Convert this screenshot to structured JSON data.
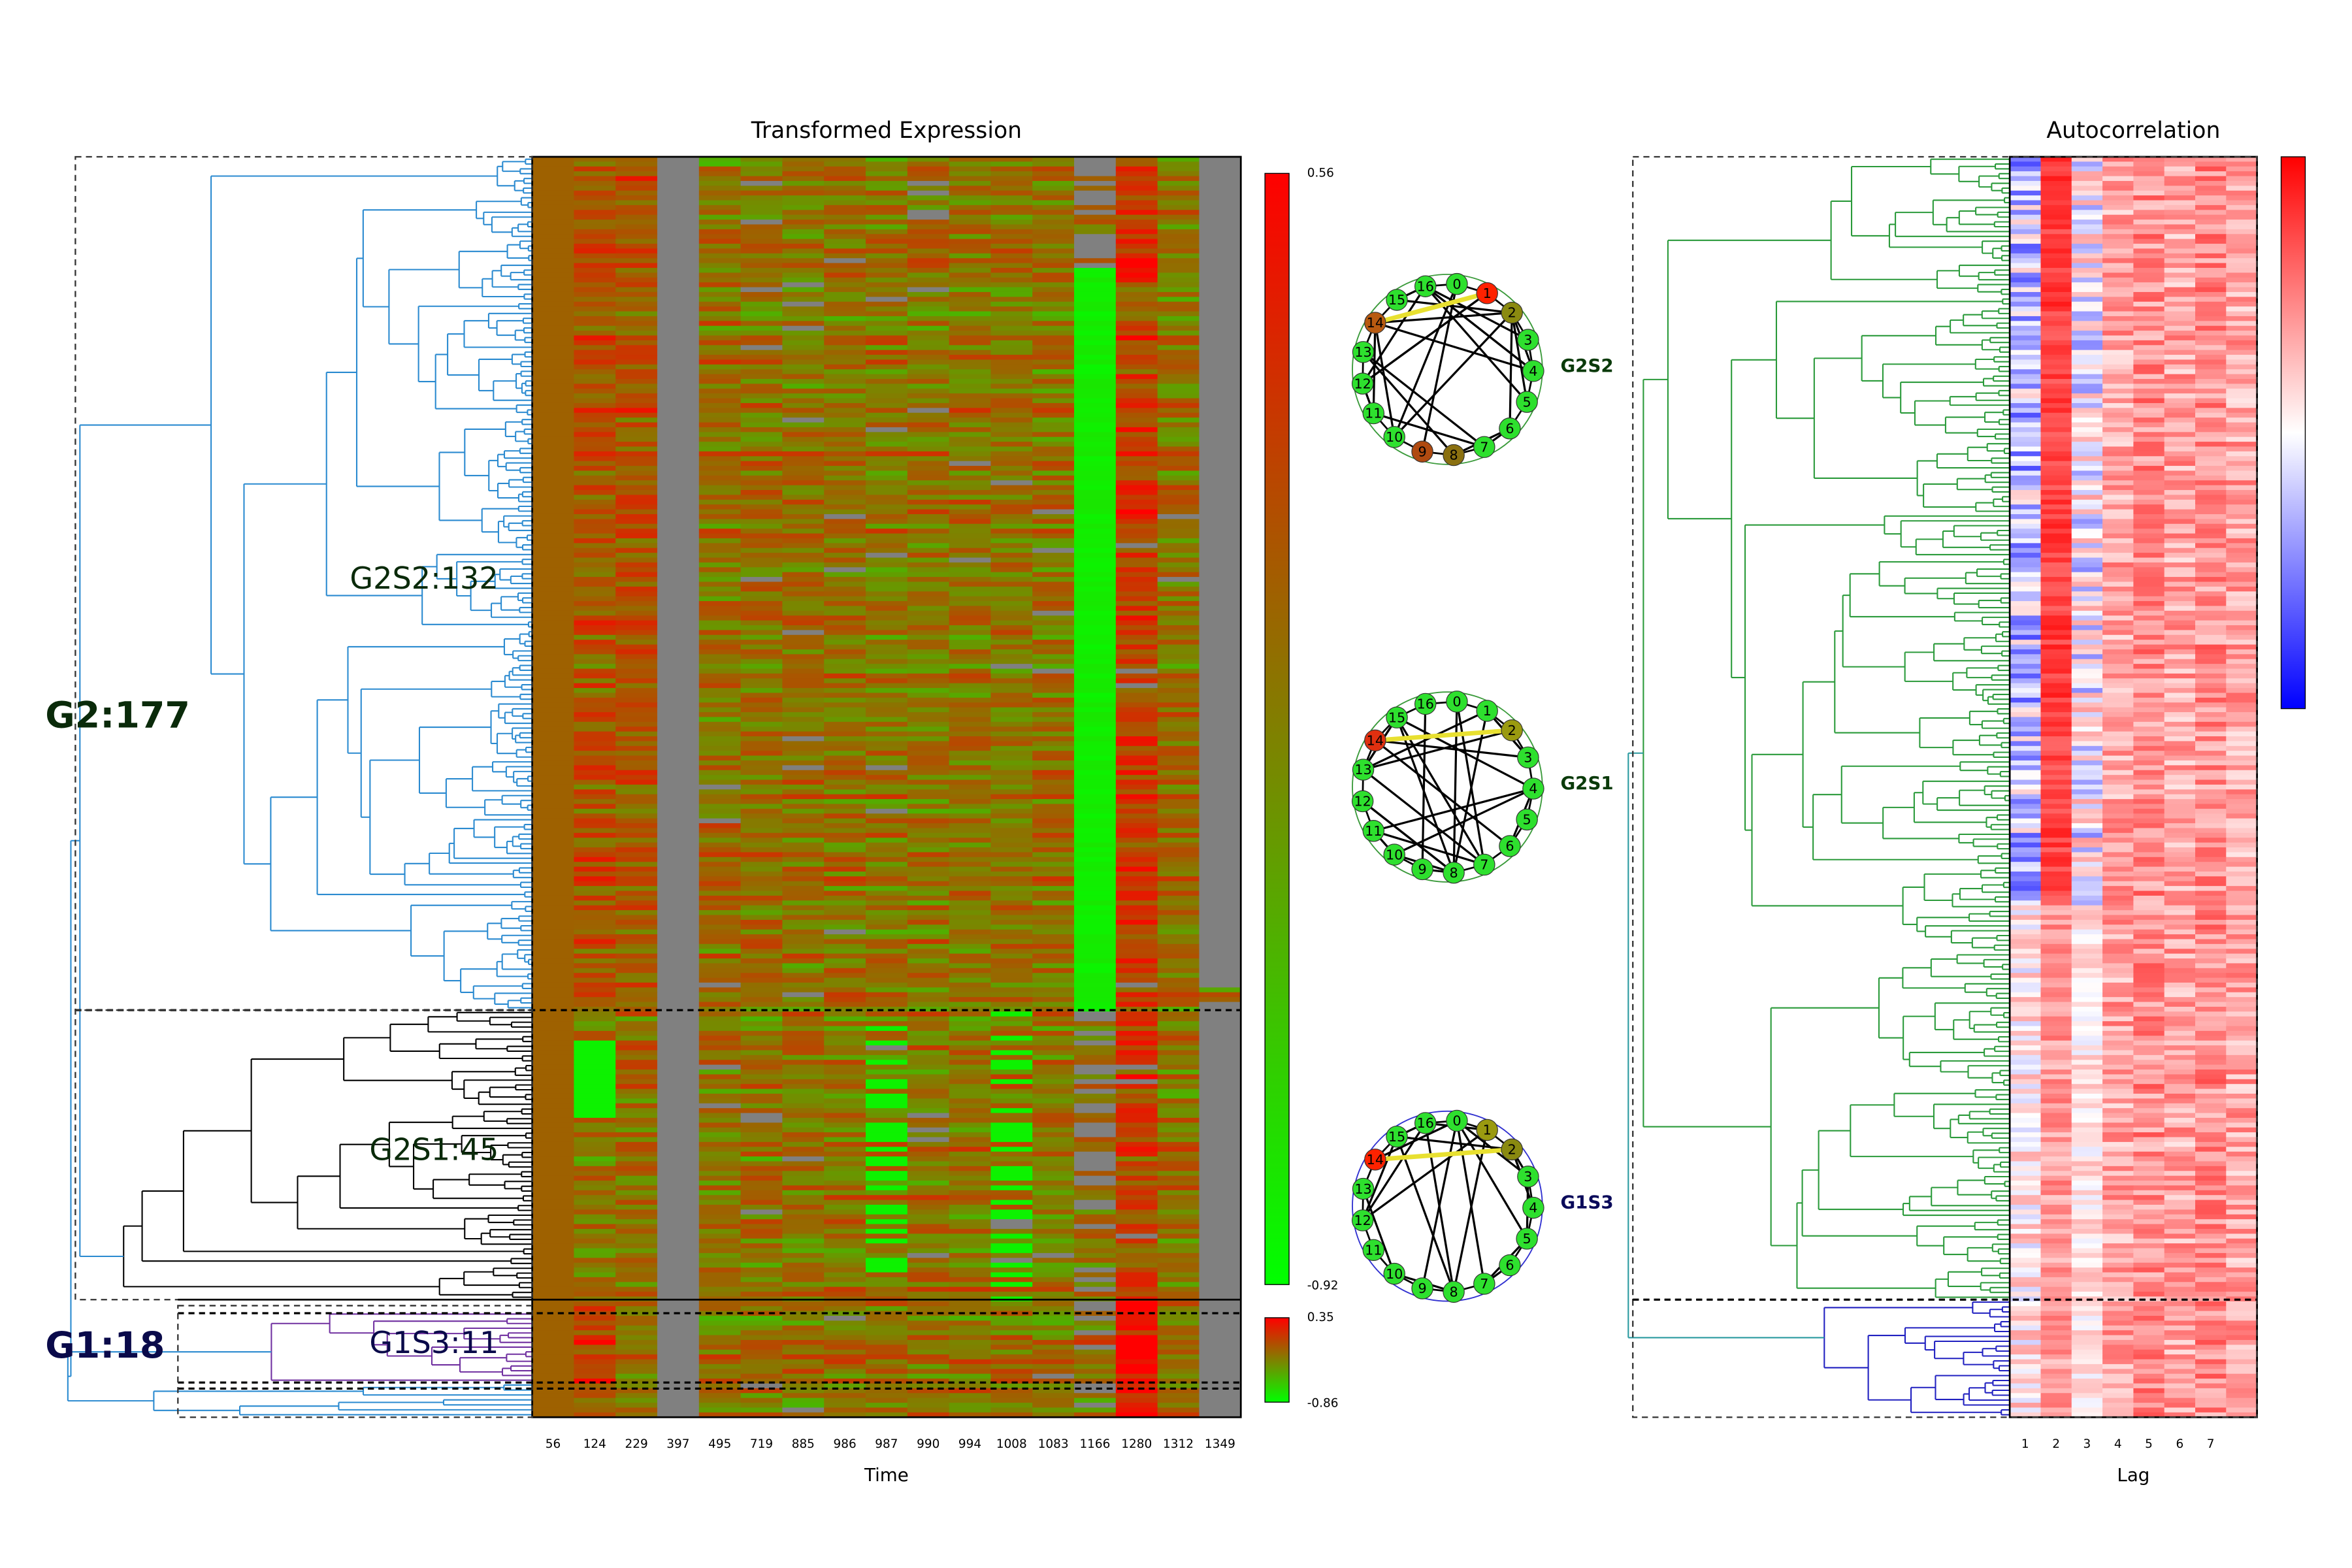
{
  "expression": {
    "title": "Transformed Expression",
    "x_label": "Time",
    "time_points": [
      56,
      124,
      229,
      397,
      495,
      719,
      885,
      986,
      987,
      990,
      994,
      1008,
      1083,
      1166,
      1280,
      1312,
      1349
    ],
    "colormap": [
      "#00ff00",
      "#808000",
      "#ff0000"
    ],
    "missing_color": "#808080",
    "colorbars": [
      {
        "max": 0.56,
        "min": -0.92
      },
      {
        "max": 0.35,
        "min": -0.86
      }
    ]
  },
  "clusters": {
    "g2": "G2:177",
    "g2s2": "G2S2:132",
    "g2s1": "G2S1:45",
    "g1": "G1:18",
    "g1s3": "G1S3:11"
  },
  "node_labels": [
    "0",
    "1",
    "2",
    "3",
    "4",
    "5",
    "6",
    "7",
    "8",
    "9",
    "10",
    "11",
    "12",
    "13",
    "14",
    "15",
    "16"
  ],
  "networks": [
    {
      "label": "G2S2",
      "label_color": "#0a3a0a",
      "ring_color": "#3a9a3a",
      "node_color": "#2ee02e",
      "node_overrides": {
        "1": "#ff2200",
        "2": "#8a8a10",
        "8": "#8a7010",
        "9": "#b04a10",
        "14": "#b85a10"
      }
    },
    {
      "label": "G2S1",
      "label_color": "#0a3a0a",
      "ring_color": "#3a9a3a",
      "node_color": "#2ee02e",
      "node_overrides": {
        "2": "#9a9a10",
        "14": "#e03010"
      }
    },
    {
      "label": "G1S3",
      "label_color": "#0a0a5a",
      "ring_color": "#3030d0",
      "node_color": "#2ee02e",
      "node_overrides": {
        "1": "#9a9a10",
        "2": "#8a8a10",
        "14": "#ff2200"
      }
    }
  ],
  "autocorrelation": {
    "title": "Autocorrelation",
    "x_label": "Lag",
    "lags": [
      1,
      2,
      3,
      4,
      5,
      6,
      7
    ],
    "colormap": [
      "#0000ff",
      "#ffffff",
      "#ff0000"
    ]
  }
}
